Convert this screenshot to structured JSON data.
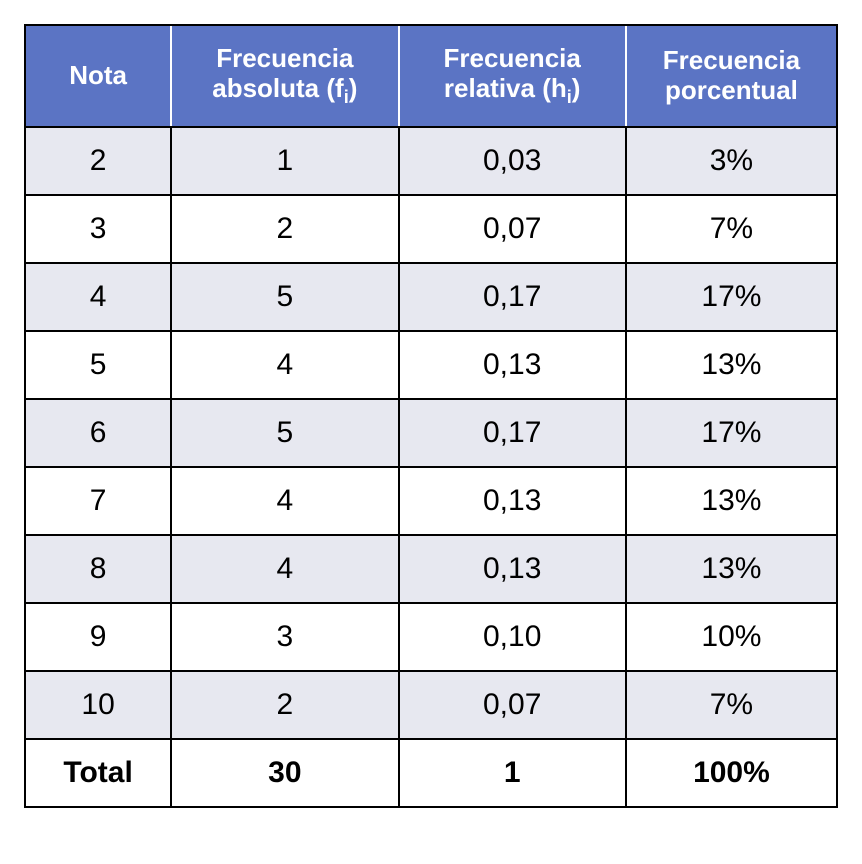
{
  "table": {
    "type": "table",
    "header_bg": "#5b74c4",
    "header_fg": "#ffffff",
    "row_alt_bg": "#e7e8f0",
    "row_plain_bg": "#ffffff",
    "border_color": "#000000",
    "text_color": "#000000",
    "header_fontsize": 26,
    "cell_fontsize": 30,
    "columns": [
      {
        "label_html": "Nota",
        "width_pct": 18
      },
      {
        "label_html": "Frecuencia absoluta (f<span class=\"sub\">i</span>)",
        "width_pct": 28
      },
      {
        "label_html": "Frecuencia relativa (h<span class=\"sub\">i</span>)",
        "width_pct": 28
      },
      {
        "label_html": "Frecuencia porcentual",
        "width_pct": 26
      }
    ],
    "rows": [
      {
        "nota": "2",
        "fi": "1",
        "hi": "0,03",
        "pct": "3%"
      },
      {
        "nota": "3",
        "fi": "2",
        "hi": "0,07",
        "pct": "7%"
      },
      {
        "nota": "4",
        "fi": "5",
        "hi": "0,17",
        "pct": "17%"
      },
      {
        "nota": "5",
        "fi": "4",
        "hi": "0,13",
        "pct": "13%"
      },
      {
        "nota": "6",
        "fi": "5",
        "hi": "0,17",
        "pct": "17%"
      },
      {
        "nota": "7",
        "fi": "4",
        "hi": "0,13",
        "pct": "13%"
      },
      {
        "nota": "8",
        "fi": "4",
        "hi": "0,13",
        "pct": "13%"
      },
      {
        "nota": "9",
        "fi": "3",
        "hi": "0,10",
        "pct": "10%"
      },
      {
        "nota": "10",
        "fi": "2",
        "hi": "0,07",
        "pct": "7%"
      }
    ],
    "footer": {
      "label": "Total",
      "fi": "30",
      "hi": "1",
      "pct": "100%"
    }
  }
}
